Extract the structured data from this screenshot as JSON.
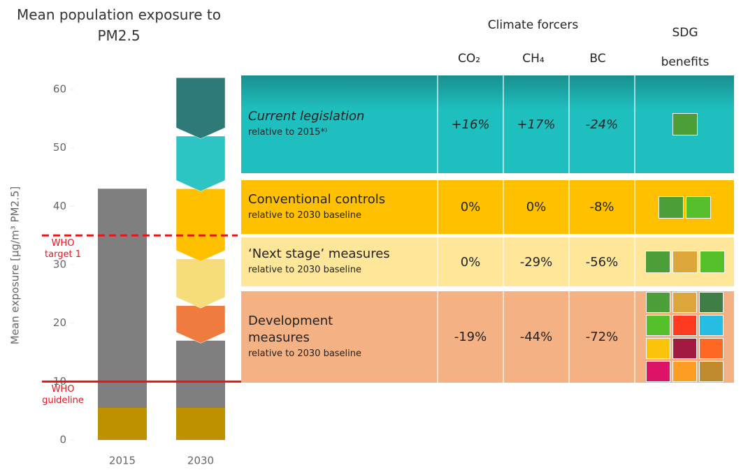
{
  "chart_data": {
    "type": "stacked-bar",
    "title": "Mean population exposure to PM2.5",
    "y_label": "Mean exposure [μg/m³ PM2.5]",
    "categories": [
      "2015",
      "2030"
    ],
    "series": [
      {
        "color": "#bf9000",
        "values": [
          5.5,
          5.5
        ]
      },
      {
        "color": "#7f7f7f",
        "values": [
          37.5,
          11.5
        ]
      },
      {
        "color": "#f07b3f",
        "values": [
          null,
          6
        ]
      },
      {
        "color": "#f7dc7c",
        "values": [
          null,
          8
        ]
      },
      {
        "color": "#ffc000",
        "values": [
          null,
          12
        ]
      },
      {
        "color": "#2ec4c4",
        "values": [
          null,
          9
        ]
      },
      {
        "color": "#2e7a78",
        "values": [
          null,
          10
        ]
      }
    ],
    "ylim": [
      0,
      62
    ],
    "yticks": [
      0,
      10,
      20,
      30,
      40,
      50,
      60
    ],
    "reference_lines": [
      {
        "label": "WHO target 1",
        "value": 35,
        "dashed": true,
        "color": "#e8141c"
      },
      {
        "label": "WHO guideline",
        "value": 10,
        "dashed": false,
        "color": "#e8141c"
      }
    ]
  },
  "table": {
    "header": {
      "group": "Climate forcers",
      "columns": [
        "CO₂",
        "CH₄",
        "BC"
      ],
      "sdg": "SDG benefits"
    },
    "rows": [
      {
        "title": "Current legislation",
        "subtitle": "relative to 2015*⁾",
        "cells": [
          "+16%",
          "+17%",
          "-24%"
        ],
        "color": "#1fbfbf"
      },
      {
        "title": "Conventional controls",
        "subtitle": "relative to 2030 baseline",
        "cells": [
          "0%",
          "0%",
          "-8%"
        ],
        "color": "#ffc000"
      },
      {
        "title": "‘Next stage’ measures",
        "subtitle": "relative to 2030 baseline",
        "cells": [
          "0%",
          "-29%",
          "-56%"
        ],
        "color": "#ffe699"
      },
      {
        "title": "Development measures",
        "subtitle": "relative to 2030 baseline",
        "cells": [
          "-19%",
          "-44%",
          "-72%"
        ],
        "color": "#f4b183"
      }
    ]
  }
}
